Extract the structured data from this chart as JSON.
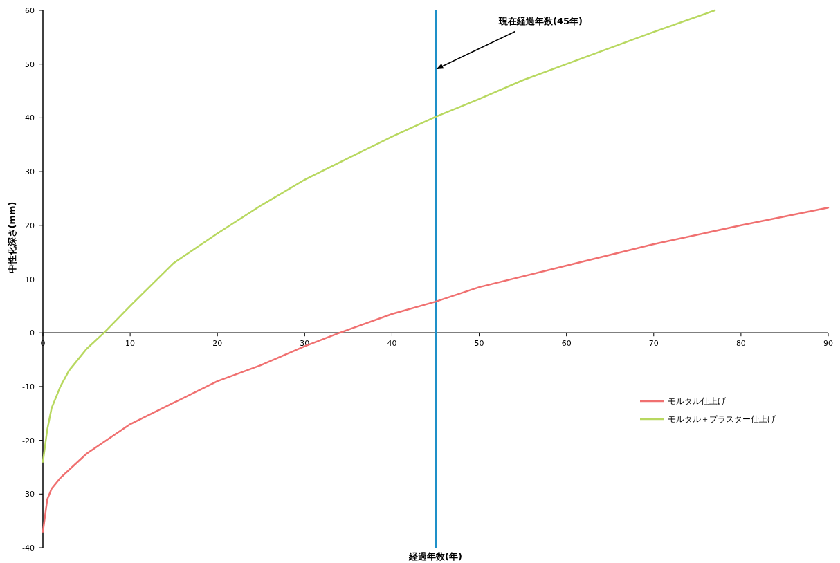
{
  "chart_data": {
    "type": "line",
    "xlabel": "経過年数(年)",
    "ylabel": "中性化深さ(mm)",
    "xlim": [
      0,
      90
    ],
    "ylim": [
      -40,
      60
    ],
    "xticks": [
      0,
      10,
      20,
      30,
      40,
      50,
      60,
      70,
      80,
      90
    ],
    "yticks": [
      -40,
      -30,
      -20,
      -10,
      0,
      10,
      20,
      30,
      40,
      50,
      60
    ],
    "legend": "right",
    "ref_lines": [
      {
        "axis": "x",
        "value": 45,
        "color": "#1e90c8"
      }
    ],
    "annotations": [
      {
        "text": "現在経過年数(45年)",
        "x": 45,
        "y": 49
      }
    ],
    "series": [
      {
        "name": "モルタル仕上げ",
        "color": "#f07070",
        "x": [
          0,
          0.5,
          1,
          2,
          5,
          10,
          15,
          20,
          25,
          30,
          34,
          40,
          45,
          50,
          60,
          70,
          80,
          90
        ],
        "values": [
          -37,
          -31,
          -29,
          -27,
          -22.5,
          -17,
          -13,
          -9,
          -6,
          -2.5,
          0,
          3.5,
          5.8,
          8.5,
          12.5,
          16.5,
          20,
          23.3
        ]
      },
      {
        "name": "モルタル＋プラスター仕上げ",
        "color": "#b8d860",
        "x": [
          0,
          0.5,
          1,
          2,
          3,
          5,
          7,
          10,
          15,
          20,
          25,
          30,
          35,
          40,
          45,
          50,
          55,
          60,
          65,
          70,
          77
        ],
        "values": [
          -24,
          -18,
          -14,
          -10,
          -7,
          -3,
          0,
          5,
          13,
          18.5,
          23.7,
          28.5,
          32.5,
          36.5,
          40.2,
          43.5,
          47,
          50,
          53,
          56,
          60
        ]
      }
    ]
  }
}
